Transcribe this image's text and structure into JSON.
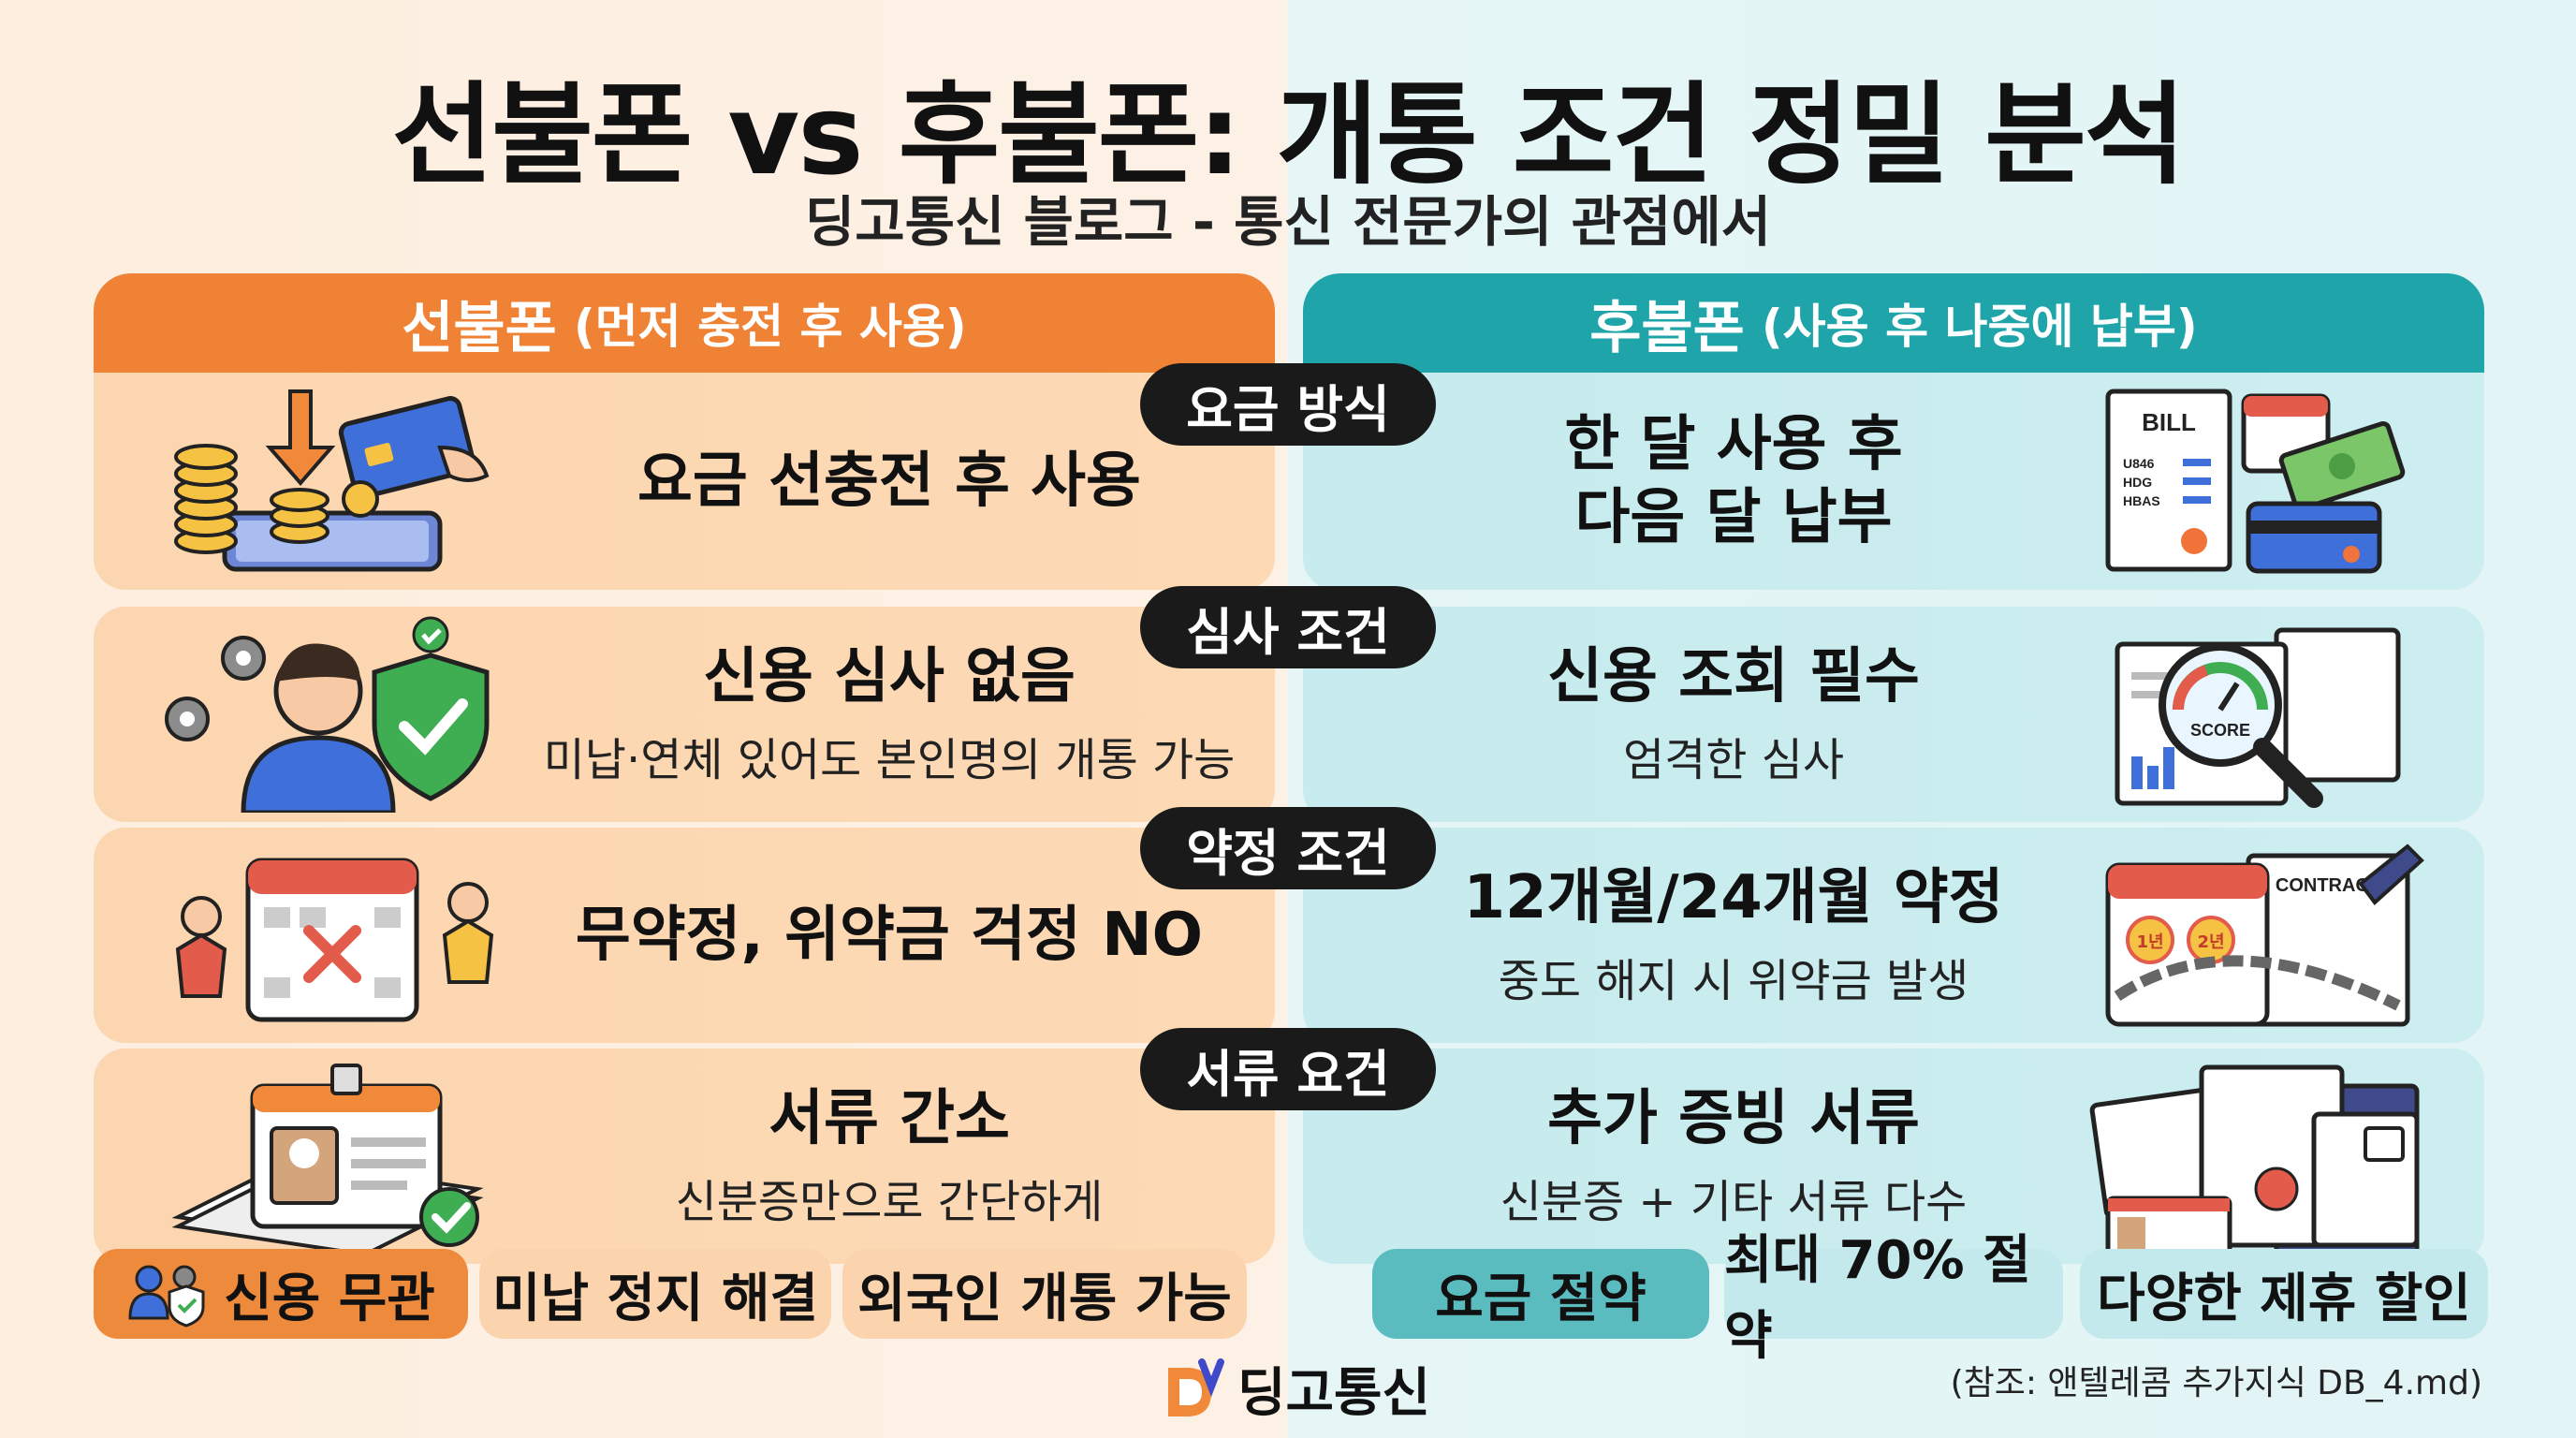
{
  "title": "선불폰 vs 후불폰: 개통 조건 정밀 분석",
  "subtitle": "딩고통신 블로그 - 통신 전문가의 관점에서",
  "left_header": {
    "title": "선불폰",
    "sub": "(먼저 충전 후 사용)"
  },
  "right_header": {
    "title": "후불폰",
    "sub": "(사용 후 나중에 납부)"
  },
  "rows": [
    {
      "category": "요금 방식",
      "left": {
        "main": "요금 선충전 후 사용",
        "sub": ""
      },
      "right": {
        "main_line1": "한 달 사용 후",
        "main_line2": "다음 달 납부",
        "sub": ""
      },
      "right_bill_label": "BILL",
      "right_bill_lines": [
        "U846",
        "HDG",
        "HBAS"
      ]
    },
    {
      "category": "심사 조건",
      "left": {
        "main": "신용 심사 없음",
        "sub": "미납·연체 있어도 본인명의 개통 가능"
      },
      "right": {
        "main": "신용 조회 필수",
        "sub": "엄격한 심사"
      },
      "right_score_label": "SCORE"
    },
    {
      "category": "약정 조건",
      "left": {
        "main": "무약정, 위약금 걱정 NO",
        "sub": ""
      },
      "right": {
        "main": "12개월/24개월 약정",
        "sub": "중도 해지 시 위약금 발생"
      },
      "right_contract_label": "CONTRACT",
      "right_badges": [
        "1년",
        "2년"
      ]
    },
    {
      "category": "서류 요건",
      "left": {
        "main": "서류 간소",
        "sub": "신분증만으로 간단하게"
      },
      "right": {
        "main": "추가 증빙 서류",
        "sub": "신분증 + 기타 서류 다수"
      }
    }
  ],
  "left_tags": [
    "신용 무관",
    "미납 정지 해결",
    "외국인 개통 가능"
  ],
  "right_tags": [
    "요금 절약",
    "최대 70% 절약",
    "다양한 제휴 할인"
  ],
  "brand": "딩고통신",
  "reference": "(참조: 앤텔레콤 추가지식 DB_4.md)",
  "colors": {
    "left_accent": "#ef8234",
    "right_accent": "#1fa5a9",
    "pill": "#1a1a1a"
  }
}
